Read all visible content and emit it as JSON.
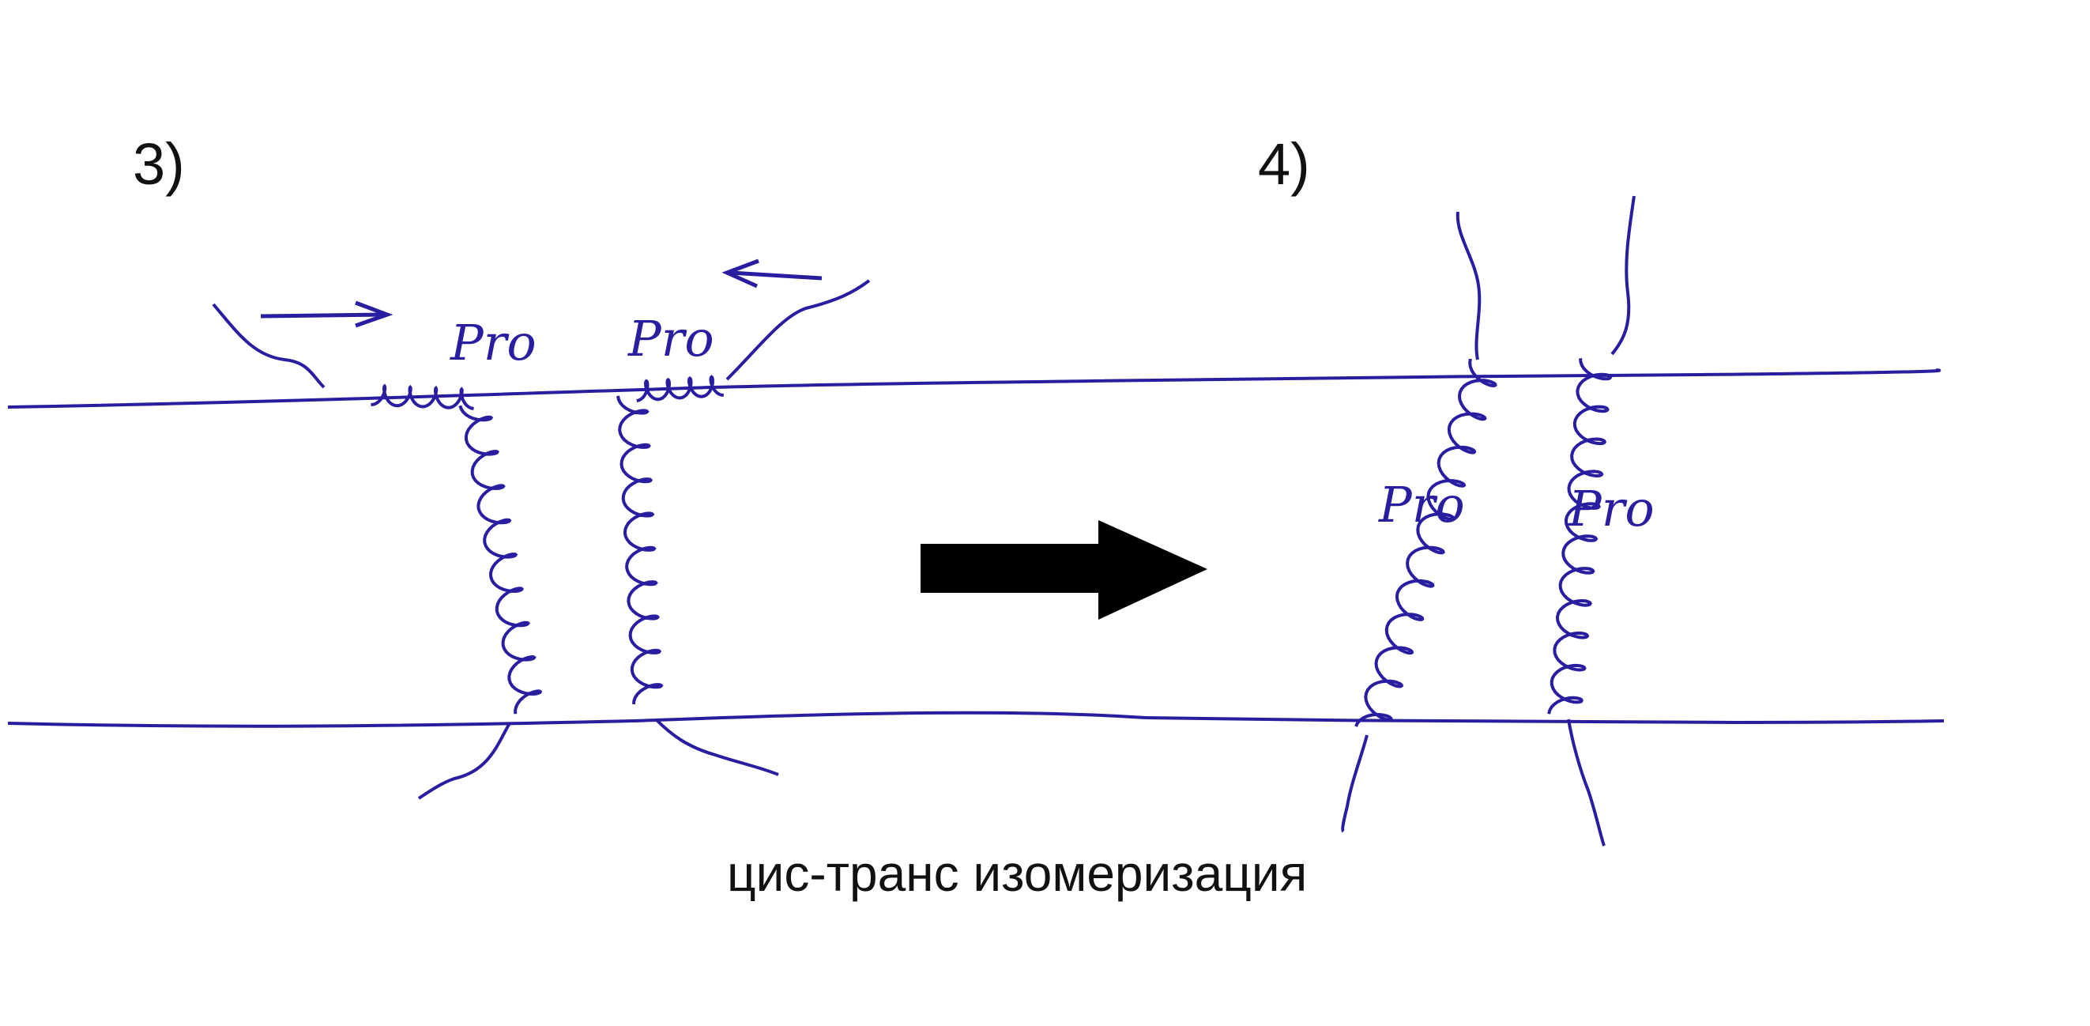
{
  "panels": {
    "left": {
      "number": "3)",
      "labels": [
        "Pro",
        "Pro"
      ]
    },
    "right": {
      "number": "4)",
      "labels": [
        "Pro",
        "Pro"
      ]
    }
  },
  "caption": "цис-транс изомеризация",
  "colors": {
    "ink": "#2a1ea0",
    "arrow": "#000000",
    "text": "#111111",
    "background": "#ffffff"
  },
  "icons": {
    "transition": "right-arrow-icon",
    "motion_left": "arrow-right-icon",
    "motion_right": "arrow-left-icon"
  }
}
